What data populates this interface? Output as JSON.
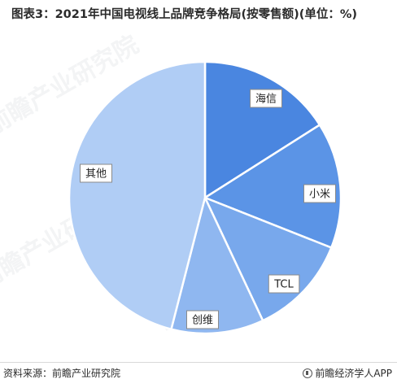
{
  "chart_data": {
    "type": "pie",
    "title": "图表3：2021年中国电视线上品牌竞争格局(按零售额)(单位：%)",
    "slices": [
      {
        "label": "海信",
        "value": 16,
        "color": "#4a86e0"
      },
      {
        "label": "小米",
        "value": 15,
        "color": "#5b94e6"
      },
      {
        "label": "TCL",
        "value": 12,
        "color": "#78a8ec"
      },
      {
        "label": "创维",
        "value": 11,
        "color": "#8fb7f0"
      },
      {
        "label": "其他",
        "value": 46,
        "color": "#b0cdf5"
      }
    ],
    "start_direction": "12 o'clock",
    "direction": "clockwise",
    "legend": "none"
  },
  "footer": {
    "source": "资料来源：前瞻产业研究院",
    "brand": "前瞻经济学人APP"
  },
  "watermark": {
    "text": "前瞻产业研究院"
  }
}
